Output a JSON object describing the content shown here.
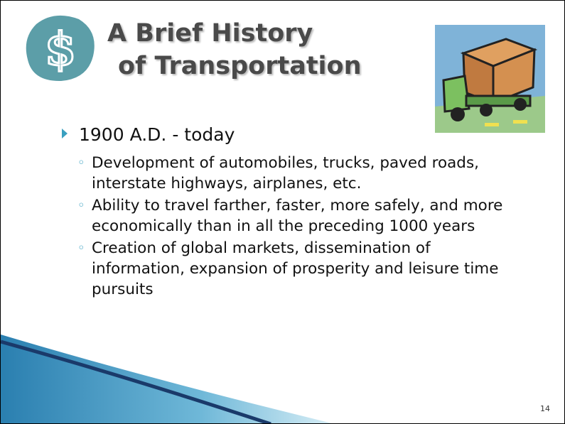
{
  "slide": {
    "title": [
      "A Brief History",
      "of Transportation"
    ],
    "bullet": "1900 A.D. - today",
    "sub_bullets": [
      "Development of automobiles, trucks, paved roads, interstate highways, airplanes, etc.",
      "Ability to travel farther, faster, more safely, and more economically than in all the preceding 1000 years",
      "Creation of global markets, dissemination of information, expansion of prosperity and leisure time pursuits"
    ],
    "page_number": "14"
  }
}
